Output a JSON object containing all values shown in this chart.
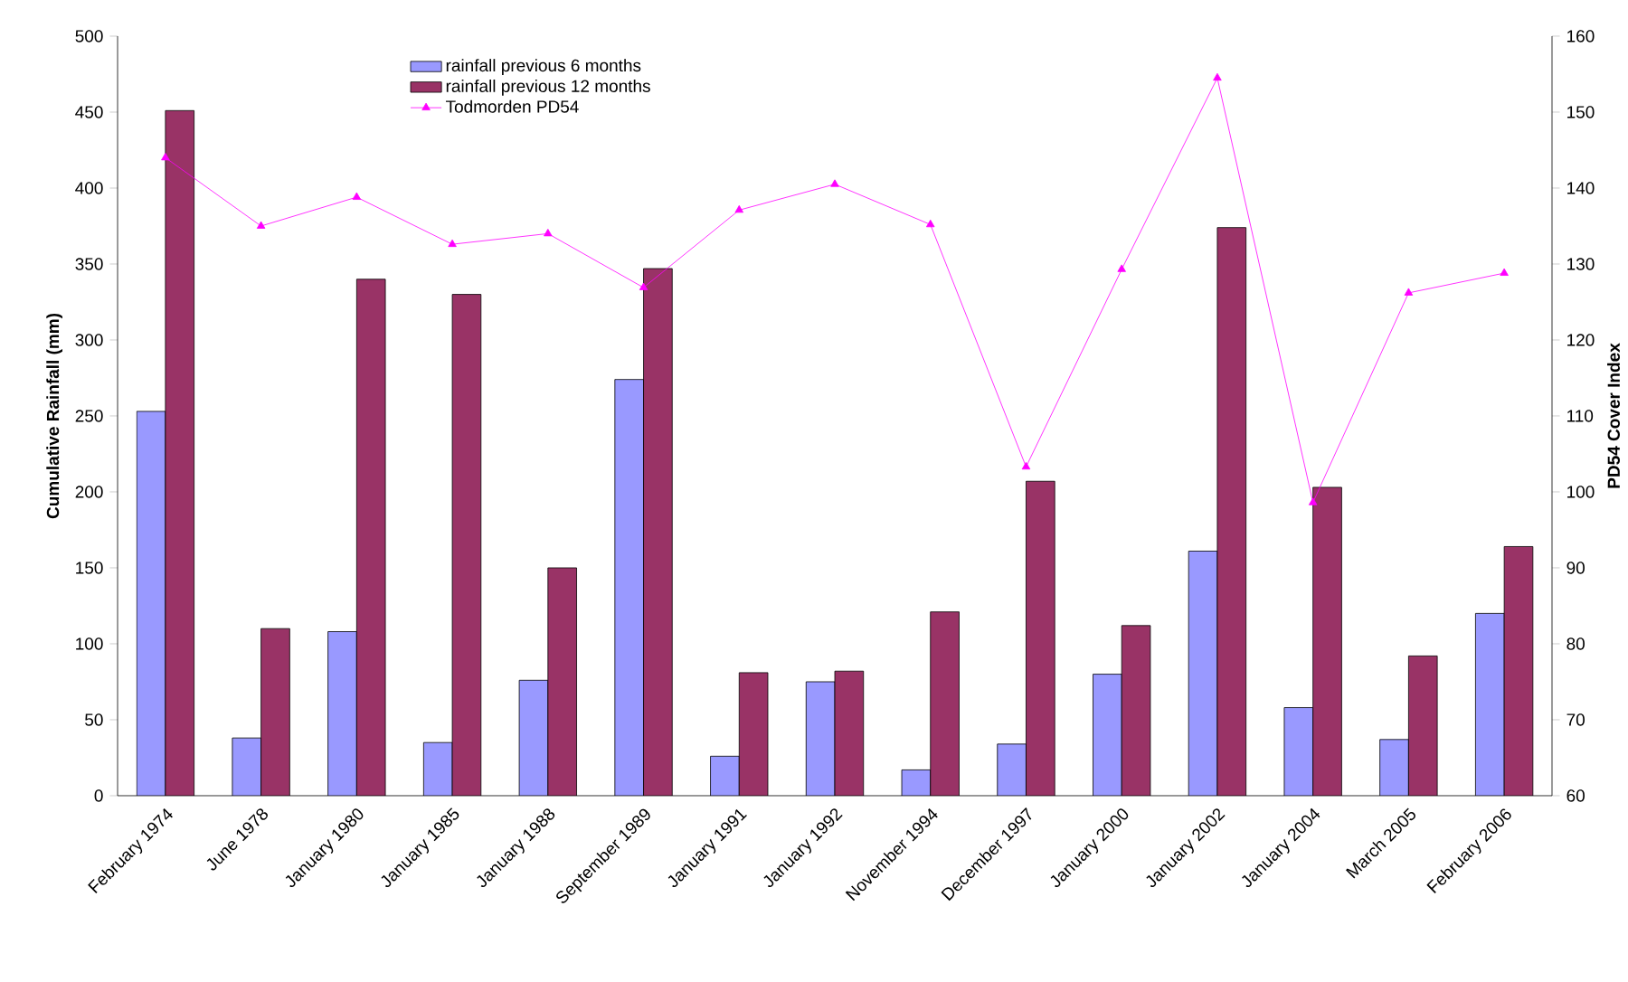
{
  "chart_data": {
    "type": "bar",
    "ylabel": "Cumulative Rainfall (mm)",
    "y2label": "PD54 Cover Index",
    "categories": [
      "February 1974",
      "June 1978",
      "January 1980",
      "January 1985",
      "January 1988",
      "September 1989",
      "January 1991",
      "January 1992",
      "November 1994",
      "December 1997",
      "January 2000",
      "January 2002",
      "January 2004",
      "March 2005",
      "February 2006"
    ],
    "series": [
      {
        "name": "rainfall  previous 6 months",
        "color": "#9999ff",
        "values": [
          253,
          38,
          108,
          35,
          76,
          274,
          26,
          75,
          17,
          34,
          80,
          161,
          58,
          37,
          120
        ]
      },
      {
        "name": "rainfall previous 12 months",
        "color": "#993366",
        "values": [
          451,
          110,
          340,
          330,
          150,
          347,
          81,
          82,
          121,
          207,
          112,
          374,
          203,
          92,
          164
        ]
      },
      {
        "name": "Todmorden PD54",
        "type": "line",
        "axis": "y2",
        "color": "#ff00ff",
        "marker": "triangle",
        "values": [
          144,
          135,
          138.8,
          132.6,
          134,
          126.9,
          137.1,
          140.5,
          135.2,
          103.3,
          129.3,
          154.5,
          98.6,
          126.2,
          128.8
        ]
      }
    ],
    "ylim": [
      0,
      500
    ],
    "yticks": [
      0,
      50,
      100,
      150,
      200,
      250,
      300,
      350,
      400,
      450,
      500
    ],
    "y2lim": [
      60,
      160
    ],
    "y2ticks": [
      60,
      70,
      80,
      90,
      100,
      110,
      120,
      130,
      140,
      150,
      160
    ],
    "legend": "top",
    "grid": false
  }
}
